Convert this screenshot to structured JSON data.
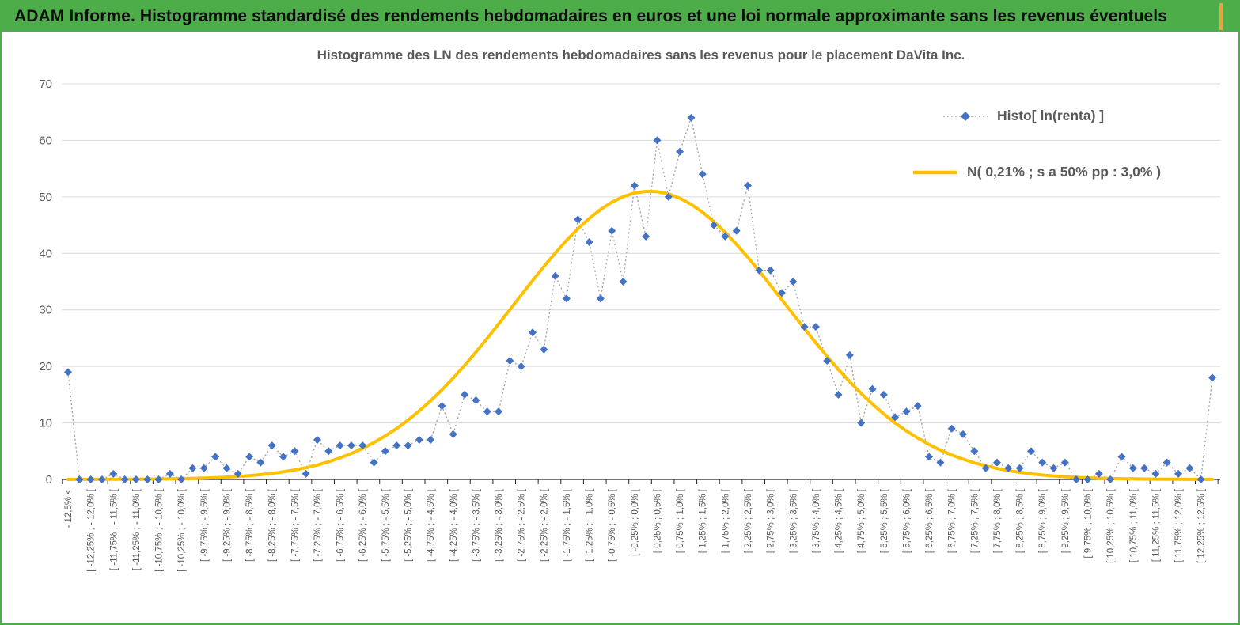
{
  "header": {
    "title": "ADAM Informe. Histogramme standardisé des rendements hebdomadaires en euros et une loi normale approximante sans les revenus éventuels"
  },
  "colors": {
    "header_bg": "#4DAE49",
    "header_accent": "#E8A33D",
    "scatter": "#4472C4",
    "scatter_connector": "#A6A6A6",
    "curve": "#FFC000",
    "gridline": "#D9D9D9",
    "axis": "#262626",
    "axis_text": "#595959"
  },
  "chart_data": {
    "type": "scatter",
    "title": "Histogramme des LN des rendements hebdomadaires sans les revenus pour le placement DaVita Inc.",
    "ylim": [
      0,
      70
    ],
    "yticks": [
      0,
      10,
      20,
      30,
      40,
      50,
      60,
      70
    ],
    "grid": "horizontal",
    "legend_position": "right-top",
    "label_every_n_categories": 2,
    "x_tick_labels": [
      "- 12,5% <",
      "[ -12,25% ; - 12,0% [",
      "[ -11,75% ; - 11,5% [",
      "[ -11,25% ; - 11,0% [",
      "[ -10,75% ; - 10,5% [",
      "[ -10,25% ; - 10,0% [",
      "[ -9,75% ; - 9,5% [",
      "[ -9,25% ; - 9,0% [",
      "[ -8,75% ; - 8,5% [",
      "[ -8,25% ; - 8,0% [",
      "[ -7,75% ; - 7,5% [",
      "[ -7,25% ; - 7,0% [",
      "[ -6,75% ; - 6,5% [",
      "[ -6,25% ; - 6,0% [",
      "[ -5,75% ; - 5,5% [",
      "[ -5,25% ; - 5,0% [",
      "[ -4,75% ; - 4,5% [",
      "[ -4,25% ; - 4,0% [",
      "[ -3,75% ; - 3,5% [",
      "[ -3,25% ; - 3,0% [",
      "[ -2,75% ; - 2,5% [",
      "[ -2,25% ; - 2,0% [",
      "[ -1,75% ; - 1,5% [",
      "[ -1,25% ; - 1,0% [",
      "[ -0,75% ; - 0,5% [",
      "[ -0,25% ; 0,0% [",
      "[ 0,25% ; 0,5% [",
      "[ 0,75% ; 1,0% [",
      "[ 1,25% ; 1,5% [",
      "[ 1,75% ; 2,0% [",
      "[ 2,25% ; 2,5% [",
      "[ 2,75% ; 3,0% [",
      "[ 3,25% ; 3,5% [",
      "[ 3,75% ; 4,0% [",
      "[ 4,25% ; 4,5% [",
      "[ 4,75% ; 5,0% [",
      "[ 5,25% ; 5,5% [",
      "[ 5,75% ; 6,0% [",
      "[ 6,25% ; 6,5% [",
      "[ 6,75% ; 7,0% [",
      "[ 7,25% ; 7,5% [",
      "[ 7,75% ; 8,0% [",
      "[ 8,25% ; 8,5% [",
      "[ 8,75% ; 9,0% [",
      "[ 9,25% ; 9,5% [",
      "[ 9,75% ; 10,0% [",
      "[ 10,25% ; 10,5% [",
      "[ 10,75% ; 11,0% [",
      "[ 11,25% ; 11,5% [",
      "[ 11,75% ; 12,0% [",
      "[ 12,25% ; 12,5% ["
    ],
    "series": [
      {
        "name": "Histo[ ln(renta) ]",
        "marker": "diamond",
        "line_style": "dotted",
        "color": "#4472C4",
        "values": [
          19,
          0,
          0,
          0,
          1,
          0,
          0,
          0,
          0,
          1,
          0,
          2,
          2,
          4,
          2,
          1,
          4,
          3,
          6,
          4,
          5,
          1,
          7,
          5,
          6,
          6,
          6,
          3,
          5,
          6,
          6,
          7,
          7,
          13,
          8,
          15,
          14,
          12,
          12,
          21,
          20,
          26,
          23,
          36,
          32,
          46,
          42,
          32,
          44,
          35,
          52,
          43,
          60,
          50,
          58,
          64,
          54,
          45,
          43,
          44,
          52,
          37,
          37,
          33,
          35,
          27,
          27,
          21,
          15,
          22,
          10,
          16,
          15,
          11,
          12,
          13,
          4,
          3,
          9,
          8,
          5,
          2,
          3,
          2,
          2,
          5,
          3,
          2,
          3,
          0,
          0,
          1,
          0,
          4,
          2,
          2,
          1,
          3,
          1,
          2,
          0,
          18
        ]
      },
      {
        "name": "N( 0,21% ; s a 50% pp : 3,0% )",
        "line_style": "solid",
        "color": "#FFC000",
        "normal_params": {
          "mean_pct": 0.21,
          "sigma_pct": 3.0,
          "peak": 51,
          "x_first_mid_pct": -12.625,
          "bin_width_pct": 0.25
        }
      }
    ]
  }
}
